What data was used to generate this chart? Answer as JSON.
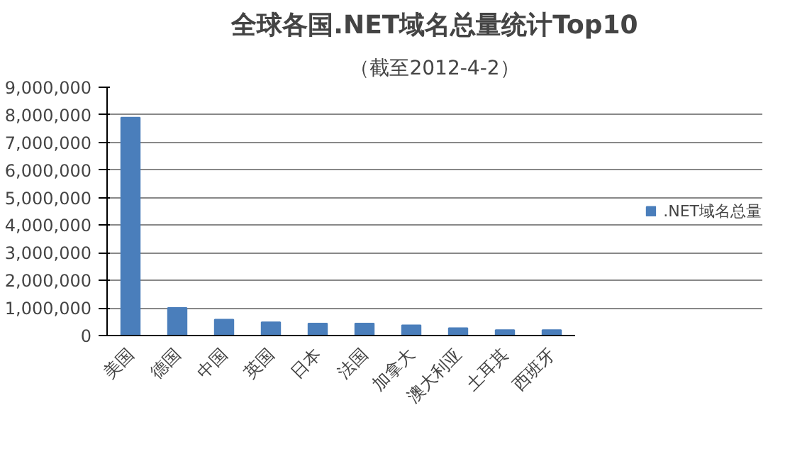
{
  "chart_data": {
    "type": "bar",
    "title": "全球各国.NET域名总量统计Top10",
    "subtitle": "（截至2012-4-2）",
    "categories": [
      "美国",
      "德国",
      "中国",
      "英国",
      "日本",
      "法国",
      "加拿大",
      "澳大利亚",
      "土耳其",
      "西班牙"
    ],
    "series": [
      {
        "name": ".NET域名总量",
        "color": "#4a7ebb",
        "values": [
          7900000,
          1000000,
          580000,
          480000,
          440000,
          440000,
          370000,
          270000,
          200000,
          200000
        ]
      }
    ],
    "ylim": [
      0,
      9000000
    ],
    "yticks": [
      {
        "value": 0,
        "label": "0"
      },
      {
        "value": 1000000,
        "label": "1,000,000"
      },
      {
        "value": 2000000,
        "label": "2,000,000"
      },
      {
        "value": 3000000,
        "label": "3,000,000"
      },
      {
        "value": 4000000,
        "label": "4,000,000"
      },
      {
        "value": 5000000,
        "label": "5,000,000"
      },
      {
        "value": 6000000,
        "label": "6,000,000"
      },
      {
        "value": 7000000,
        "label": "7,000,000"
      },
      {
        "value": 8000000,
        "label": "8,000,000"
      },
      {
        "value": 9000000,
        "label": "9,000,000"
      }
    ],
    "grid": "y",
    "legend": "right"
  }
}
